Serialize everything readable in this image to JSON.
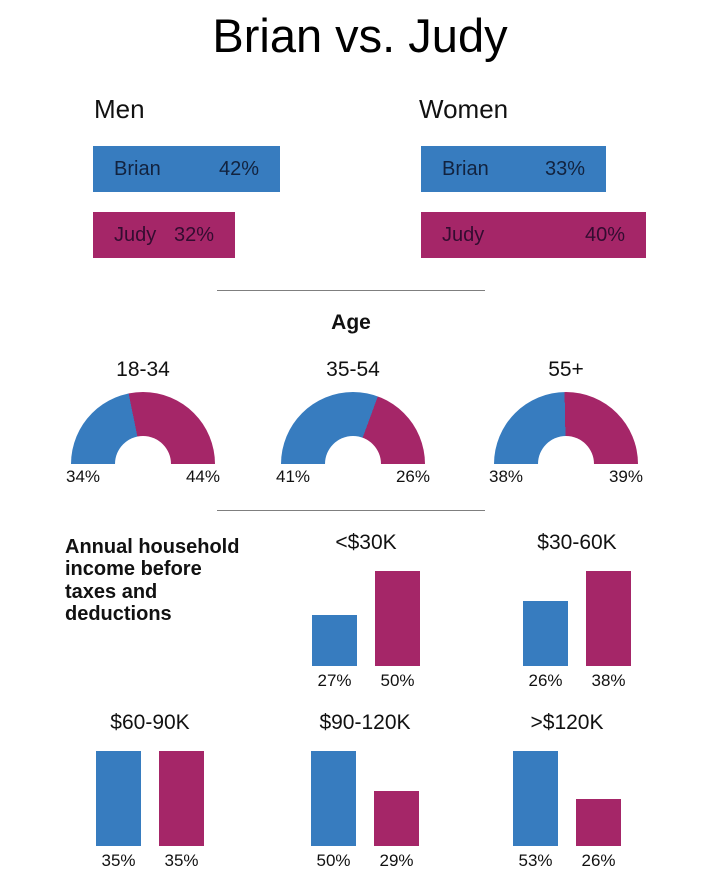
{
  "title": "Brian vs. Judy",
  "colors": {
    "brian_blue": "#377CBF",
    "judy_magenta": "#A52668",
    "divider_gray": "#7f7f7f"
  },
  "chart_data": {
    "type": "infographic",
    "title": "Brian vs. Judy",
    "series_names": [
      "Brian",
      "Judy"
    ],
    "unit": "%",
    "gender_bars": {
      "type": "bar",
      "orientation": "horizontal",
      "panels": [
        {
          "group": "Men",
          "bars": [
            {
              "name": "Brian",
              "pct": 42
            },
            {
              "name": "Judy",
              "pct": 32
            }
          ]
        },
        {
          "group": "Women",
          "bars": [
            {
              "name": "Brian",
              "pct": 33
            },
            {
              "name": "Judy",
              "pct": 40
            }
          ]
        }
      ]
    },
    "age_donuts": {
      "type": "pie",
      "subtype": "semicircle-donut",
      "section_title": "Age",
      "categories": [
        "18-34",
        "35-54",
        "55+"
      ],
      "series": [
        {
          "name": "Brian",
          "values": [
            34,
            41,
            38
          ]
        },
        {
          "name": "Judy",
          "values": [
            44,
            26,
            39
          ]
        }
      ],
      "legend_position": "none"
    },
    "income_bars": {
      "type": "bar",
      "section_title": "Annual household income before taxes and deductions",
      "categories": [
        "<$30K",
        "$30-60K",
        "$60-90K",
        "$90-120K",
        ">$120K"
      ],
      "series": [
        {
          "name": "Brian",
          "values": [
            27,
            26,
            35,
            50,
            53
          ]
        },
        {
          "name": "Judy",
          "values": [
            50,
            38,
            35,
            29,
            26
          ]
        }
      ],
      "grid": false,
      "value_labels": "below-bars"
    }
  }
}
